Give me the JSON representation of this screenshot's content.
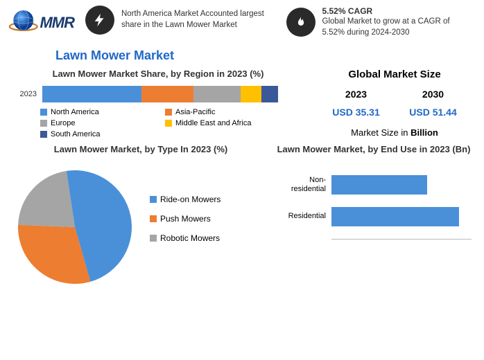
{
  "header": {
    "logo_text": "MMR",
    "block1": {
      "text": "North America Market Accounted largest share in the Lawn Mower Market"
    },
    "block2": {
      "title": "5.52% CAGR",
      "text": "Global Market to grow at a CAGR of 5.52% during 2024-2030"
    }
  },
  "main_title": "Lawn Mower Market",
  "share_chart": {
    "title": "Lawn Mower Market Share, by Region in 2023 (%)",
    "year": "2023",
    "segments": [
      {
        "label": "North America",
        "value": 42,
        "color": "#4a90d9"
      },
      {
        "label": "Asia-Pacific",
        "value": 22,
        "color": "#ed7d31"
      },
      {
        "label": "Europe",
        "value": 20,
        "color": "#a5a5a5"
      },
      {
        "label": "Middle East and Africa",
        "value": 9,
        "color": "#ffc000"
      },
      {
        "label": "South America",
        "value": 7,
        "color": "#3b5998"
      }
    ]
  },
  "market_size": {
    "title": "Global Market Size",
    "year1": "2023",
    "year2": "2030",
    "val1": "USD 35.31",
    "val2": "USD 51.44",
    "unit_pre": "Market Size in ",
    "unit_bold": "Billion"
  },
  "pie_chart": {
    "title": "Lawn Mower Market, by Type In 2023 (%)",
    "slices": [
      {
        "label": "Ride-on Mowers",
        "value": 48,
        "color": "#4a90d9"
      },
      {
        "label": "Push Mowers",
        "value": 30,
        "color": "#ed7d31"
      },
      {
        "label": "Robotic Mowers",
        "value": 22,
        "color": "#a5a5a5"
      }
    ]
  },
  "enduse_chart": {
    "title": "Lawn Mower Market, by End Use in 2023 (Bn)",
    "bars": [
      {
        "label": "Non-residential",
        "value": 15,
        "color": "#4a90d9"
      },
      {
        "label": "Residential",
        "value": 20,
        "color": "#4a90d9"
      }
    ],
    "xmax": 22
  }
}
